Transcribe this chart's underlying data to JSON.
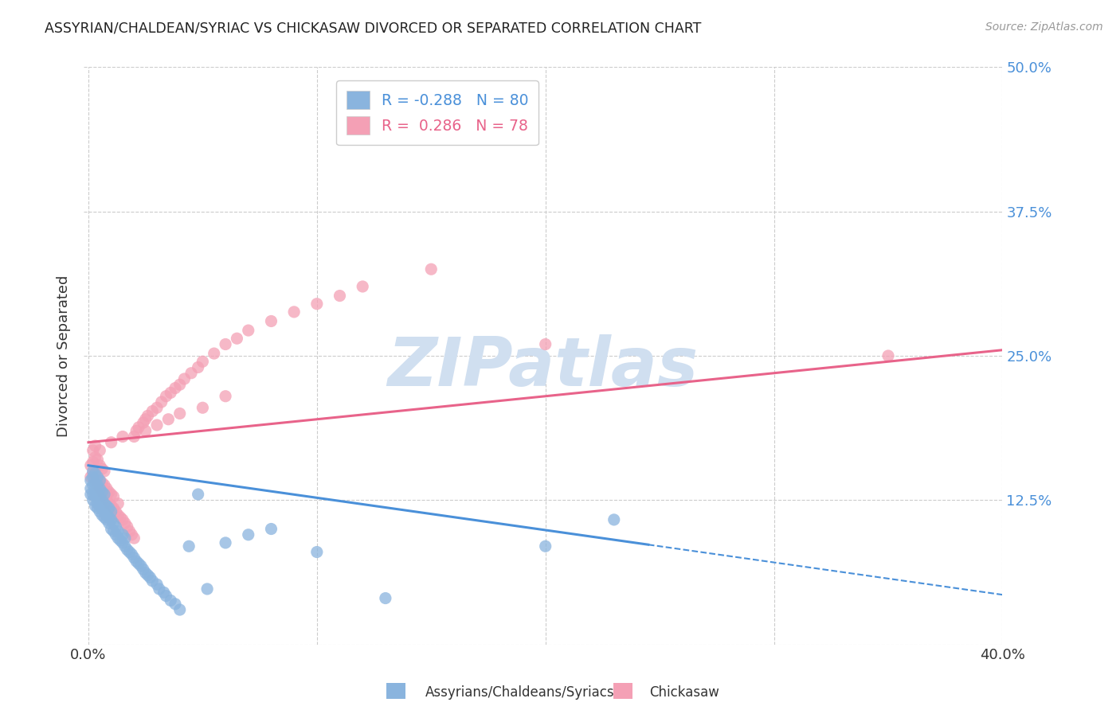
{
  "title": "ASSYRIAN/CHALDEAN/SYRIAC VS CHICKASAW DIVORCED OR SEPARATED CORRELATION CHART",
  "source_text": "Source: ZipAtlas.com",
  "ylabel": "Divorced or Separated",
  "xlim": [
    -0.002,
    0.4
  ],
  "ylim": [
    0.0,
    0.5
  ],
  "xtick_vals": [
    0.0,
    0.1,
    0.2,
    0.3,
    0.4
  ],
  "xtick_labels": [
    "0.0%",
    "",
    "",
    "",
    "40.0%"
  ],
  "ytick_vals": [
    0.0,
    0.125,
    0.25,
    0.375,
    0.5
  ],
  "ytick_labels": [
    "",
    "12.5%",
    "25.0%",
    "37.5%",
    "50.0%"
  ],
  "blue_R": -0.288,
  "blue_N": 80,
  "pink_R": 0.286,
  "pink_N": 78,
  "blue_line_color": "#4a90d9",
  "pink_line_color": "#e8638a",
  "blue_dot_color": "#8ab4de",
  "pink_dot_color": "#f4a0b5",
  "watermark_color": "#d0dff0",
  "legend_label_blue": "Assyrians/Chaldeans/Syriacs",
  "legend_label_pink": "Chickasaw",
  "blue_line_start_x": 0.0,
  "blue_line_end_solid": 0.245,
  "blue_line_end_dash": 0.4,
  "blue_line_start_y": 0.155,
  "blue_line_slope": -0.28,
  "pink_line_start_x": 0.0,
  "pink_line_end_x": 0.4,
  "pink_line_start_y": 0.175,
  "pink_line_slope": 0.2,
  "blue_x": [
    0.001,
    0.001,
    0.001,
    0.002,
    0.002,
    0.002,
    0.002,
    0.002,
    0.003,
    0.003,
    0.003,
    0.003,
    0.003,
    0.004,
    0.004,
    0.004,
    0.004,
    0.004,
    0.005,
    0.005,
    0.005,
    0.005,
    0.005,
    0.006,
    0.006,
    0.006,
    0.006,
    0.007,
    0.007,
    0.007,
    0.007,
    0.008,
    0.008,
    0.008,
    0.009,
    0.009,
    0.009,
    0.01,
    0.01,
    0.01,
    0.011,
    0.011,
    0.012,
    0.012,
    0.013,
    0.013,
    0.014,
    0.015,
    0.015,
    0.016,
    0.016,
    0.017,
    0.018,
    0.019,
    0.02,
    0.021,
    0.022,
    0.023,
    0.024,
    0.025,
    0.026,
    0.027,
    0.028,
    0.03,
    0.031,
    0.033,
    0.034,
    0.036,
    0.038,
    0.04,
    0.044,
    0.048,
    0.052,
    0.06,
    0.07,
    0.08,
    0.1,
    0.13,
    0.2,
    0.23
  ],
  "blue_y": [
    0.13,
    0.135,
    0.142,
    0.125,
    0.13,
    0.138,
    0.145,
    0.15,
    0.12,
    0.128,
    0.135,
    0.14,
    0.148,
    0.118,
    0.122,
    0.13,
    0.138,
    0.145,
    0.115,
    0.12,
    0.128,
    0.135,
    0.142,
    0.112,
    0.118,
    0.125,
    0.132,
    0.11,
    0.115,
    0.122,
    0.13,
    0.108,
    0.112,
    0.12,
    0.105,
    0.11,
    0.118,
    0.1,
    0.108,
    0.115,
    0.098,
    0.105,
    0.095,
    0.102,
    0.092,
    0.098,
    0.09,
    0.088,
    0.095,
    0.085,
    0.092,
    0.082,
    0.08,
    0.078,
    0.075,
    0.072,
    0.07,
    0.068,
    0.065,
    0.062,
    0.06,
    0.058,
    0.055,
    0.052,
    0.048,
    0.045,
    0.042,
    0.038,
    0.035,
    0.03,
    0.085,
    0.13,
    0.048,
    0.088,
    0.095,
    0.1,
    0.08,
    0.04,
    0.085,
    0.108
  ],
  "pink_x": [
    0.001,
    0.001,
    0.002,
    0.002,
    0.002,
    0.003,
    0.003,
    0.003,
    0.003,
    0.004,
    0.004,
    0.004,
    0.005,
    0.005,
    0.005,
    0.005,
    0.006,
    0.006,
    0.006,
    0.007,
    0.007,
    0.007,
    0.008,
    0.008,
    0.009,
    0.009,
    0.01,
    0.01,
    0.011,
    0.011,
    0.012,
    0.013,
    0.013,
    0.014,
    0.015,
    0.016,
    0.017,
    0.018,
    0.019,
    0.02,
    0.021,
    0.022,
    0.024,
    0.025,
    0.026,
    0.028,
    0.03,
    0.032,
    0.034,
    0.036,
    0.038,
    0.04,
    0.042,
    0.045,
    0.048,
    0.05,
    0.055,
    0.06,
    0.065,
    0.07,
    0.08,
    0.09,
    0.1,
    0.11,
    0.12,
    0.15,
    0.02,
    0.025,
    0.03,
    0.035,
    0.04,
    0.05,
    0.06,
    0.01,
    0.015,
    0.008,
    0.35,
    0.2
  ],
  "pink_y": [
    0.145,
    0.155,
    0.148,
    0.158,
    0.168,
    0.142,
    0.15,
    0.162,
    0.172,
    0.138,
    0.145,
    0.16,
    0.135,
    0.142,
    0.155,
    0.168,
    0.132,
    0.14,
    0.152,
    0.128,
    0.138,
    0.15,
    0.125,
    0.135,
    0.122,
    0.132,
    0.12,
    0.13,
    0.118,
    0.128,
    0.115,
    0.112,
    0.122,
    0.11,
    0.108,
    0.105,
    0.102,
    0.098,
    0.095,
    0.092,
    0.185,
    0.188,
    0.192,
    0.195,
    0.198,
    0.202,
    0.205,
    0.21,
    0.215,
    0.218,
    0.222,
    0.225,
    0.23,
    0.235,
    0.24,
    0.245,
    0.252,
    0.26,
    0.265,
    0.272,
    0.28,
    0.288,
    0.295,
    0.302,
    0.31,
    0.325,
    0.18,
    0.185,
    0.19,
    0.195,
    0.2,
    0.205,
    0.215,
    0.175,
    0.18,
    0.13,
    0.25,
    0.26
  ]
}
